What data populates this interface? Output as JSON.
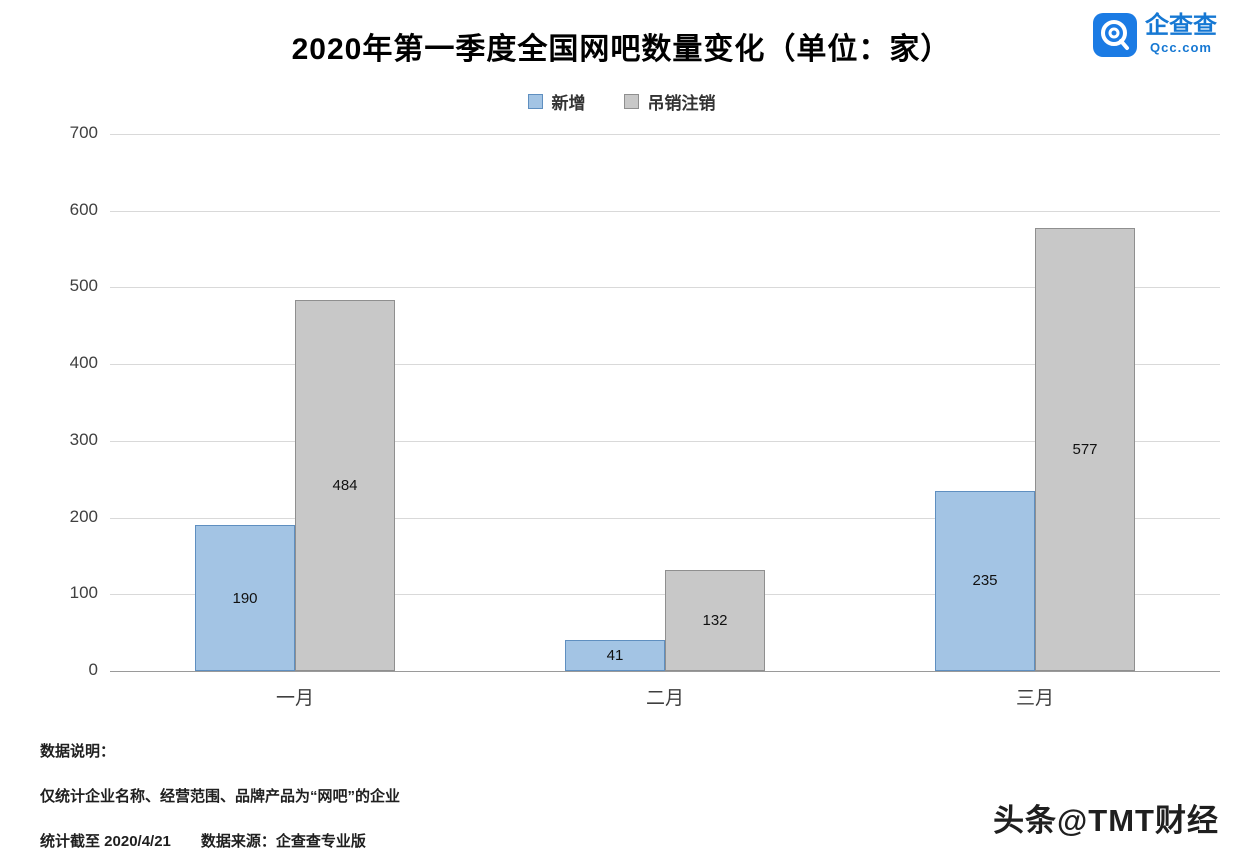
{
  "title": "2020年第一季度全国网吧数量变化（单位：家）",
  "logo": {
    "name": "企查查",
    "domain": "Qcc.com"
  },
  "chart_data": {
    "type": "bar",
    "title": "2020年第一季度全国网吧数量变化（单位：家）",
    "categories": [
      "一月",
      "二月",
      "三月"
    ],
    "series": [
      {
        "name": "新增",
        "values": [
          190,
          41,
          235
        ],
        "color": "#a3c4e4",
        "border": "#5f8fc0"
      },
      {
        "name": "吊销注销",
        "values": [
          484,
          132,
          577
        ],
        "color": "#c8c8c8",
        "border": "#8f8f8f"
      }
    ],
    "ylim": [
      0,
      700
    ],
    "yticks": [
      0,
      100,
      200,
      300,
      400,
      500,
      600,
      700
    ],
    "grid": true,
    "legend_position": "top"
  },
  "footnotes": {
    "label": "数据说明：",
    "line1": "仅统计企业名称、经营范围、品牌产品为“网吧”的企业",
    "line2": "统计截至 2020/4/21　　数据来源：企查查专业版"
  },
  "watermark": "头条@TMT财经"
}
